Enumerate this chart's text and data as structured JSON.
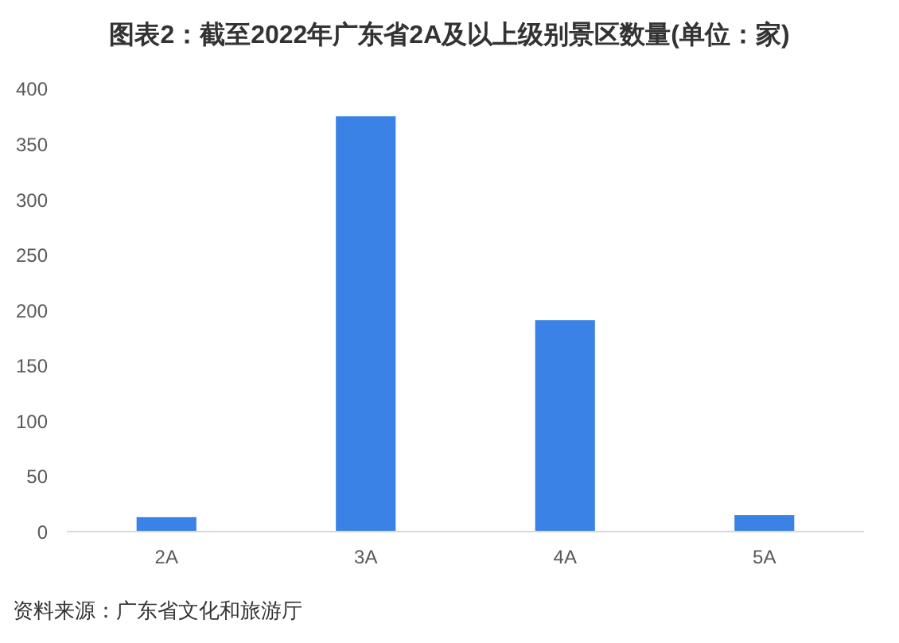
{
  "chart_data": {
    "type": "bar",
    "title": "图表2：截至2022年广东省2A及以上级别景区数量(单位：家)",
    "categories": [
      "2A",
      "3A",
      "4A",
      "5A"
    ],
    "values": [
      13,
      375,
      191,
      15
    ],
    "color": "#3a82e5",
    "ylim": [
      0,
      400
    ],
    "yticks": [
      0,
      50,
      100,
      150,
      200,
      250,
      300,
      350,
      400
    ],
    "annotations": [
      "资料来源：广东省文化和旅游厅"
    ]
  }
}
